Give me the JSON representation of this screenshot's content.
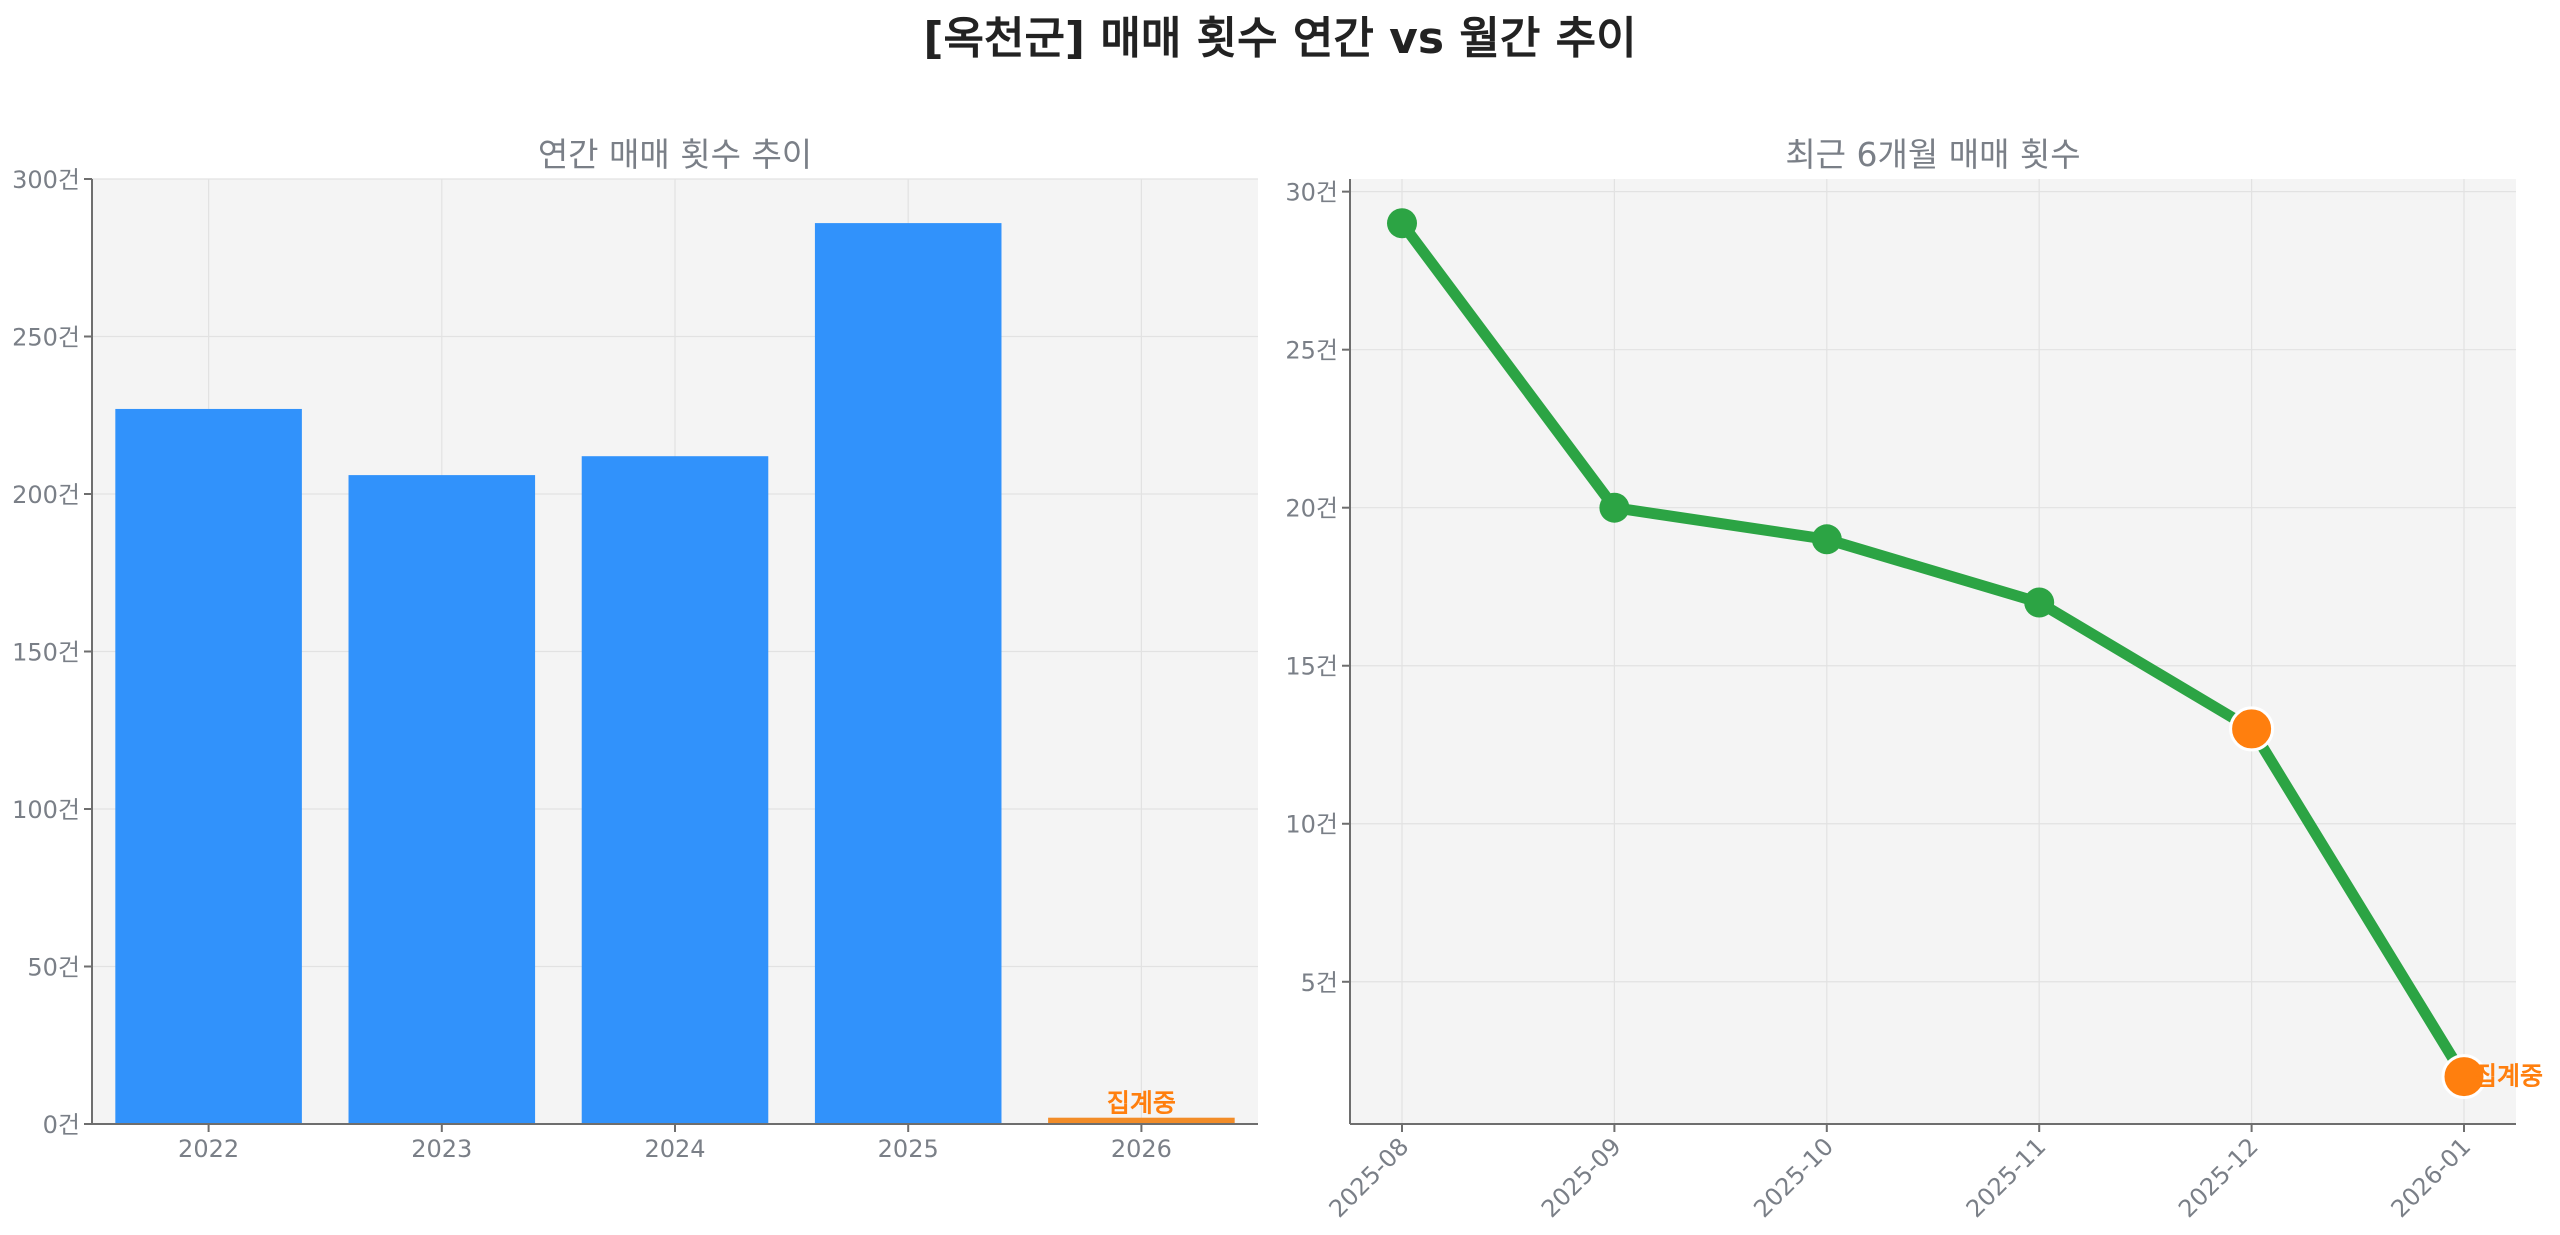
{
  "title": "[옥천군] 매매 횟수 연간 vs 월간 추이",
  "chart_data": [
    {
      "type": "bar",
      "title": "연간 매매 횟수 추이",
      "categories": [
        "2022",
        "2023",
        "2024",
        "2025",
        "2026"
      ],
      "values": [
        227,
        206,
        212,
        286,
        2
      ],
      "ylim": [
        0,
        300
      ],
      "yticks": [
        "0건",
        "50건",
        "100건",
        "150건",
        "200건",
        "250건",
        "300건"
      ],
      "bar_colors": [
        "#3192fb",
        "#3192fb",
        "#3192fb",
        "#3192fb",
        "#f28c28"
      ],
      "annotations": [
        {
          "category": "2026",
          "text": "집계중",
          "color": "#ff7f0e"
        }
      ],
      "grid": true
    },
    {
      "type": "line",
      "title": "최근 6개월 매매 횟수",
      "x": [
        "2025-08",
        "2025-09",
        "2025-10",
        "2025-11",
        "2025-12",
        "2026-01"
      ],
      "values": [
        29,
        20,
        19,
        17,
        13,
        2
      ],
      "ylim": [
        0.5,
        30.4
      ],
      "yticks": [
        "5건",
        "10건",
        "15건",
        "20건",
        "25건",
        "30건"
      ],
      "line_color": "#2ca444",
      "highlight_color": "#ff7f0e",
      "highlight_points": [
        "2025-12",
        "2026-01"
      ],
      "annotations": [
        {
          "x": "2026-01",
          "text": "집계중",
          "color": "#ff7f0e"
        }
      ],
      "grid": true
    }
  ]
}
